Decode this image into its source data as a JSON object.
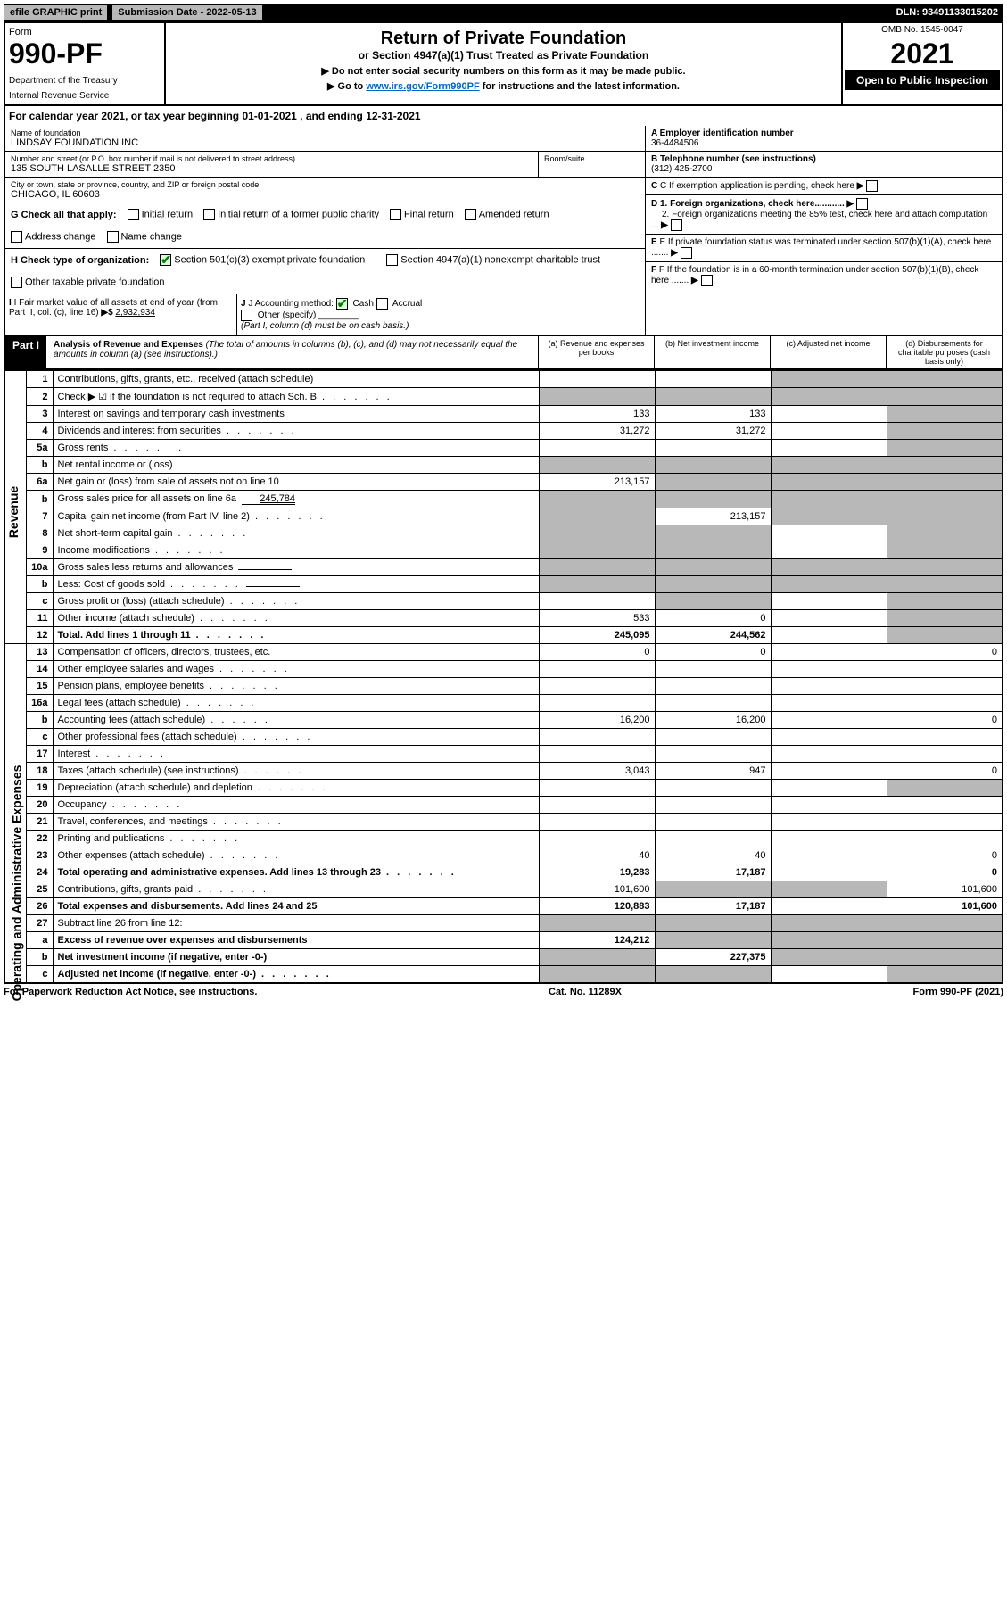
{
  "header": {
    "efile": "efile GRAPHIC print",
    "submission_label": "Submission Date - 2022-05-13",
    "dln": "DLN: 93491133015202"
  },
  "form_top": {
    "form_label": "Form",
    "form_number": "990-PF",
    "dept1": "Department of the Treasury",
    "dept2": "Internal Revenue Service",
    "title": "Return of Private Foundation",
    "subtitle": "or Section 4947(a)(1) Trust Treated as Private Foundation",
    "instr1": "▶ Do not enter social security numbers on this form as it may be made public.",
    "instr2_pre": "▶ Go to ",
    "instr2_link": "www.irs.gov/Form990PF",
    "instr2_post": " for instructions and the latest information.",
    "omb": "OMB No. 1545-0047",
    "year": "2021",
    "open": "Open to Public Inspection"
  },
  "cal_year": {
    "pre": "For calendar year 2021, or tax year beginning ",
    "begin": "01-01-2021",
    "mid": " , and ending ",
    "end": "12-31-2021"
  },
  "entity": {
    "name_label": "Name of foundation",
    "name": "LINDSAY FOUNDATION INC",
    "addr_label": "Number and street (or P.O. box number if mail is not delivered to street address)",
    "addr": "135 SOUTH LASALLE STREET 2350",
    "room_label": "Room/suite",
    "city_label": "City or town, state or province, country, and ZIP or foreign postal code",
    "city": "CHICAGO, IL  60603",
    "a_label": "A Employer identification number",
    "ein": "36-4484506",
    "b_label": "B Telephone number (see instructions)",
    "phone": "(312) 425-2700",
    "c_label": "C If exemption application is pending, check here",
    "d1_label": "D 1. Foreign organizations, check here............",
    "d2_label": "2. Foreign organizations meeting the 85% test, check here and attach computation ...",
    "e_label": "E  If private foundation status was terminated under section 507(b)(1)(A), check here .......",
    "f_label": "F  If the foundation is in a 60-month termination under section 507(b)(1)(B), check here .......",
    "g_label": "G Check all that apply:",
    "g_opts": [
      "Initial return",
      "Initial return of a former public charity",
      "Final return",
      "Amended return",
      "Address change",
      "Name change"
    ],
    "h_label": "H Check type of organization:",
    "h_opt1": "Section 501(c)(3) exempt private foundation",
    "h_opt2": "Section 4947(a)(1) nonexempt charitable trust",
    "h_opt3": "Other taxable private foundation",
    "i_label": "I Fair market value of all assets at end of year (from Part II, col. (c), line 16)",
    "i_val": "2,932,934",
    "j_label": "J Accounting method:",
    "j_cash": "Cash",
    "j_accrual": "Accrual",
    "j_other": "Other (specify)",
    "j_note": "(Part I, column (d) must be on cash basis.)"
  },
  "part1": {
    "hdr": "Part I",
    "title": "Analysis of Revenue and Expenses",
    "note": " (The total of amounts in columns (b), (c), and (d) may not necessarily equal the amounts in column (a) (see instructions).)",
    "col_a": "(a)   Revenue and expenses per books",
    "col_b": "(b)   Net investment income",
    "col_c": "(c)   Adjusted net income",
    "col_d": "(d)   Disbursements for charitable purposes (cash basis only)"
  },
  "side_labels": {
    "revenue": "Revenue",
    "expenses": "Operating and Administrative Expenses"
  },
  "rows": [
    {
      "n": "1",
      "d": "Contributions, gifts, grants, etc., received (attach schedule)",
      "a": "",
      "b": "",
      "c": "s",
      "dcol": "s"
    },
    {
      "n": "2",
      "d": "Check ▶ ☑ if the foundation is not required to attach Sch. B",
      "dots": true,
      "a": "s",
      "b": "s",
      "c": "s",
      "dcol": "s"
    },
    {
      "n": "3",
      "d": "Interest on savings and temporary cash investments",
      "a": "133",
      "b": "133",
      "c": "",
      "dcol": "s"
    },
    {
      "n": "4",
      "d": "Dividends and interest from securities",
      "dots": true,
      "a": "31,272",
      "b": "31,272",
      "c": "",
      "dcol": "s"
    },
    {
      "n": "5a",
      "d": "Gross rents",
      "dots": true,
      "a": "",
      "b": "",
      "c": "",
      "dcol": "s"
    },
    {
      "n": "b",
      "d": "Net rental income or (loss)",
      "inline": "",
      "a": "s",
      "b": "s",
      "c": "s",
      "dcol": "s"
    },
    {
      "n": "6a",
      "d": "Net gain or (loss) from sale of assets not on line 10",
      "a": "213,157",
      "b": "s",
      "c": "s",
      "dcol": "s"
    },
    {
      "n": "b",
      "d": "Gross sales price for all assets on line 6a",
      "inline": "245,784",
      "a": "s",
      "b": "s",
      "c": "s",
      "dcol": "s"
    },
    {
      "n": "7",
      "d": "Capital gain net income (from Part IV, line 2)",
      "dots": true,
      "a": "s",
      "b": "213,157",
      "c": "s",
      "dcol": "s"
    },
    {
      "n": "8",
      "d": "Net short-term capital gain",
      "dots": true,
      "a": "s",
      "b": "s",
      "c": "",
      "dcol": "s"
    },
    {
      "n": "9",
      "d": "Income modifications",
      "dots": true,
      "a": "s",
      "b": "s",
      "c": "",
      "dcol": "s"
    },
    {
      "n": "10a",
      "d": "Gross sales less returns and allowances",
      "inline": "",
      "a": "s",
      "b": "s",
      "c": "s",
      "dcol": "s"
    },
    {
      "n": "b",
      "d": "Less: Cost of goods sold",
      "dots": true,
      "inline": "",
      "a": "s",
      "b": "s",
      "c": "s",
      "dcol": "s"
    },
    {
      "n": "c",
      "d": "Gross profit or (loss) (attach schedule)",
      "dots": true,
      "a": "",
      "b": "s",
      "c": "",
      "dcol": "s"
    },
    {
      "n": "11",
      "d": "Other income (attach schedule)",
      "dots": true,
      "a": "533",
      "b": "0",
      "c": "",
      "dcol": "s"
    },
    {
      "n": "12",
      "d": "Total. Add lines 1 through 11",
      "dots": true,
      "bold": true,
      "a": "245,095",
      "b": "244,562",
      "c": "",
      "dcol": "s"
    },
    {
      "n": "13",
      "d": "Compensation of officers, directors, trustees, etc.",
      "a": "0",
      "b": "0",
      "c": "",
      "dcol": "0"
    },
    {
      "n": "14",
      "d": "Other employee salaries and wages",
      "dots": true,
      "a": "",
      "b": "",
      "c": "",
      "dcol": ""
    },
    {
      "n": "15",
      "d": "Pension plans, employee benefits",
      "dots": true,
      "a": "",
      "b": "",
      "c": "",
      "dcol": ""
    },
    {
      "n": "16a",
      "d": "Legal fees (attach schedule)",
      "dots": true,
      "a": "",
      "b": "",
      "c": "",
      "dcol": ""
    },
    {
      "n": "b",
      "d": "Accounting fees (attach schedule)",
      "dots": true,
      "a": "16,200",
      "b": "16,200",
      "c": "",
      "dcol": "0"
    },
    {
      "n": "c",
      "d": "Other professional fees (attach schedule)",
      "dots": true,
      "a": "",
      "b": "",
      "c": "",
      "dcol": ""
    },
    {
      "n": "17",
      "d": "Interest",
      "dots": true,
      "a": "",
      "b": "",
      "c": "",
      "dcol": ""
    },
    {
      "n": "18",
      "d": "Taxes (attach schedule) (see instructions)",
      "dots": true,
      "a": "3,043",
      "b": "947",
      "c": "",
      "dcol": "0"
    },
    {
      "n": "19",
      "d": "Depreciation (attach schedule) and depletion",
      "dots": true,
      "a": "",
      "b": "",
      "c": "",
      "dcol": "s"
    },
    {
      "n": "20",
      "d": "Occupancy",
      "dots": true,
      "a": "",
      "b": "",
      "c": "",
      "dcol": ""
    },
    {
      "n": "21",
      "d": "Travel, conferences, and meetings",
      "dots": true,
      "a": "",
      "b": "",
      "c": "",
      "dcol": ""
    },
    {
      "n": "22",
      "d": "Printing and publications",
      "dots": true,
      "a": "",
      "b": "",
      "c": "",
      "dcol": ""
    },
    {
      "n": "23",
      "d": "Other expenses (attach schedule)",
      "dots": true,
      "a": "40",
      "b": "40",
      "c": "",
      "dcol": "0"
    },
    {
      "n": "24",
      "d": "Total operating and administrative expenses. Add lines 13 through 23",
      "dots": true,
      "bold": true,
      "a": "19,283",
      "b": "17,187",
      "c": "",
      "dcol": "0"
    },
    {
      "n": "25",
      "d": "Contributions, gifts, grants paid",
      "dots": true,
      "a": "101,600",
      "b": "s",
      "c": "s",
      "dcol": "101,600"
    },
    {
      "n": "26",
      "d": "Total expenses and disbursements. Add lines 24 and 25",
      "bold": true,
      "a": "120,883",
      "b": "17,187",
      "c": "",
      "dcol": "101,600"
    },
    {
      "n": "27",
      "d": "Subtract line 26 from line 12:",
      "a": "s",
      "b": "s",
      "c": "s",
      "dcol": "s"
    },
    {
      "n": "a",
      "d": "Excess of revenue over expenses and disbursements",
      "bold": true,
      "a": "124,212",
      "b": "s",
      "c": "s",
      "dcol": "s"
    },
    {
      "n": "b",
      "d": "Net investment income (if negative, enter -0-)",
      "bold": true,
      "a": "s",
      "b": "227,375",
      "c": "s",
      "dcol": "s"
    },
    {
      "n": "c",
      "d": "Adjusted net income (if negative, enter -0-)",
      "dots": true,
      "bold": true,
      "a": "s",
      "b": "s",
      "c": "",
      "dcol": "s"
    }
  ],
  "footer": {
    "left": "For Paperwork Reduction Act Notice, see instructions.",
    "mid": "Cat. No. 11289X",
    "right": "Form 990-PF (2021)"
  },
  "colors": {
    "shade": "#b8b8b8",
    "check_green": "#0a7a0a",
    "link": "#0066cc"
  }
}
